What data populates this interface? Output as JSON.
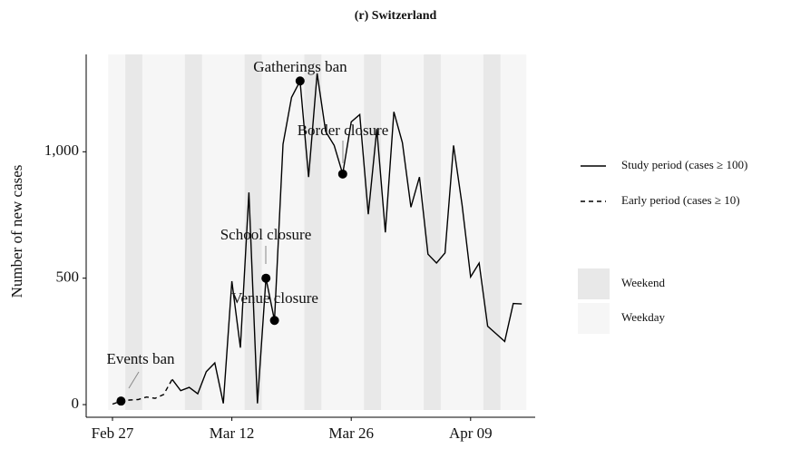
{
  "chart_data": {
    "type": "line",
    "title": "(r) Switzerland",
    "y_label": "Number of new cases",
    "x": [
      "Feb 27",
      "Feb 28",
      "Feb 29",
      "Mar 01",
      "Mar 02",
      "Mar 03",
      "Mar 04",
      "Mar 05",
      "Mar 06",
      "Mar 07",
      "Mar 08",
      "Mar 09",
      "Mar 10",
      "Mar 11",
      "Mar 12",
      "Mar 13",
      "Mar 14",
      "Mar 15",
      "Mar 16",
      "Mar 17",
      "Mar 18",
      "Mar 19",
      "Mar 20",
      "Mar 21",
      "Mar 22",
      "Mar 23",
      "Mar 24",
      "Mar 25",
      "Mar 26",
      "Mar 27",
      "Mar 28",
      "Mar 29",
      "Mar 30",
      "Mar 31",
      "Apr 01",
      "Apr 02",
      "Apr 03",
      "Apr 04",
      "Apr 05",
      "Apr 06",
      "Apr 07",
      "Apr 08",
      "Apr 09",
      "Apr 10",
      "Apr 11",
      "Apr 12",
      "Apr 13",
      "Apr 14",
      "Apr 15"
    ],
    "xticks": [
      "Feb 27",
      "Mar 12",
      "Mar 26",
      "Apr 09"
    ],
    "ylim": [
      -50,
      1385
    ],
    "yticks": [
      0,
      500,
      {
        "value": 1000,
        "label": "1,000"
      }
    ],
    "series": [
      {
        "name": "Study period (cases ≥ 100)",
        "color": "#000000",
        "dash": false,
        "values": [
          null,
          null,
          null,
          null,
          null,
          null,
          null,
          100,
          55,
          68,
          43,
          130,
          165,
          5,
          488,
          225,
          839,
          5,
          500,
          333,
          1030,
          1215,
          1280,
          900,
          1310,
          1080,
          1025,
          912,
          1118,
          1147,
          753,
          1090,
          681,
          1158,
          1036,
          781,
          900,
          595,
          560,
          600,
          1025,
          790,
          505,
          560,
          310,
          280,
          250,
          400,
          398
        ]
      },
      {
        "name": "Early period (cases ≥ 10)",
        "color": "#000000",
        "dash": true,
        "values": [
          2,
          14,
          18,
          20,
          30,
          25,
          40,
          100,
          null,
          null,
          null,
          null,
          null,
          null,
          null,
          null,
          null,
          null,
          null,
          null,
          null,
          null,
          null,
          null,
          null,
          null,
          null,
          null,
          null,
          null,
          null,
          null,
          null,
          null,
          null,
          null,
          null,
          null,
          null,
          null,
          null,
          null,
          null,
          null,
          null,
          null,
          null,
          null,
          null
        ]
      }
    ],
    "events": [
      {
        "label": "Events ban",
        "date": "Feb 28"
      },
      {
        "label": "School closure",
        "date": "Mar 16"
      },
      {
        "label": "Venue closure",
        "date": "Mar 17"
      },
      {
        "label": "Gatherings ban",
        "date": "Mar 20"
      },
      {
        "label": "Border closure",
        "date": "Mar 25"
      }
    ],
    "bands": [
      {
        "name": "Weekend",
        "color": "#e8e8e8",
        "dates": [
          "Feb 29",
          "Mar 01",
          "Mar 07",
          "Mar 08",
          "Mar 14",
          "Mar 15",
          "Mar 21",
          "Mar 22",
          "Mar 28",
          "Mar 29",
          "Apr 04",
          "Apr 05",
          "Apr 11",
          "Apr 12"
        ]
      },
      {
        "name": "Weekday",
        "color": "#f6f6f6"
      }
    ]
  }
}
